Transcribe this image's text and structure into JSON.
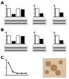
{
  "chart_data": [
    {
      "type": "bar",
      "title": "A",
      "categories": [
        null,
        null,
        null,
        null
      ],
      "values": [
        1,
        0.3,
        1,
        0.9
      ],
      "colors": [
        "#ffffff",
        "#000000",
        "#ffffff",
        "#000000"
      ],
      "ylim": [
        0,
        1.5
      ],
      "yticks": [
        0,
        0.5,
        1,
        1.5
      ],
      "tick_labels": false
    },
    {
      "type": "bar",
      "categories": [
        null,
        null
      ],
      "values": [
        1,
        0.4
      ],
      "colors": [
        "#ffffff",
        "#000000"
      ],
      "ylim": [
        0,
        1.5
      ],
      "yticks": [
        0,
        0.5,
        1,
        1.5
      ],
      "tick_labels": false
    },
    {
      "type": "bar",
      "categories": [
        null,
        null
      ],
      "values": [
        1,
        0.5
      ],
      "colors": [
        "#ffffff",
        "#000000"
      ],
      "ylim": [
        0,
        1.5
      ],
      "yticks": [
        0,
        0.5,
        1,
        1.5
      ],
      "tick_labels": false
    },
    {
      "type": "bar",
      "title": "B",
      "categories": [
        null,
        null,
        null,
        null
      ],
      "values": [
        1,
        0.3,
        1,
        0.95
      ],
      "colors": [
        "#ffffff",
        "#000000",
        "#ffffff",
        "#000000"
      ],
      "ylim": [
        0,
        1.5
      ],
      "yticks": [
        0,
        0.5,
        1,
        1.5
      ],
      "tick_labels": false
    },
    {
      "type": "bar",
      "categories": [
        null,
        null
      ],
      "values": [
        1,
        0.6
      ],
      "colors": [
        "#ffffff",
        "#000000"
      ],
      "ylim": [
        0,
        1.5
      ],
      "yticks": [
        0,
        0.5,
        1,
        1.5
      ],
      "tick_labels": false
    },
    {
      "type": "bar",
      "categories": [
        null,
        null
      ],
      "values": [
        1,
        0.4
      ],
      "colors": [
        "#ffffff",
        "#000000"
      ],
      "ylim": [
        0,
        1.5
      ],
      "yticks": [
        0,
        0.5,
        1,
        1.5
      ],
      "tick_labels": false
    },
    {
      "type": "line",
      "title": "C",
      "categories": [
        null,
        null,
        null,
        null,
        null
      ],
      "values": [
        0.8,
        0.2,
        0.1,
        0.1,
        0.1
      ],
      "color": "#000000",
      "ylim": [
        0,
        1
      ],
      "yticks": [
        0,
        0.5,
        1
      ],
      "tick_labels": false
    }
  ]
}
